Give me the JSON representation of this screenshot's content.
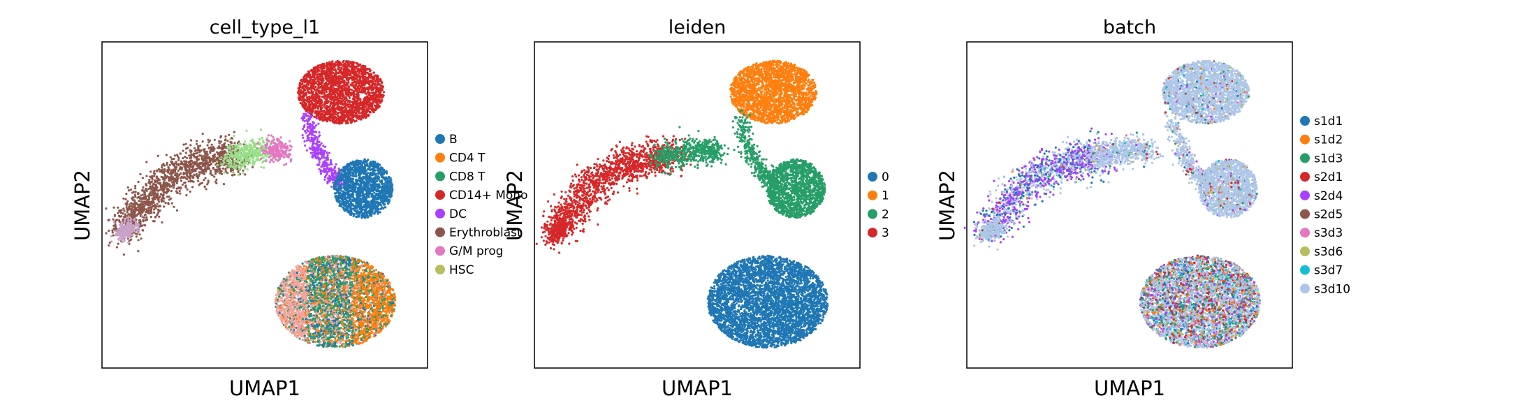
{
  "chart_data": [
    {
      "type": "scatter",
      "title": "cell_type_l1",
      "xlabel": "UMAP1",
      "ylabel": "UMAP2",
      "xticks": "none",
      "yticks": "none",
      "legend_position": "right",
      "legend": [
        {
          "label": "B",
          "color": "#1f77b4"
        },
        {
          "label": "CD4 T",
          "color": "#ff7f0e"
        },
        {
          "label": "CD8 T",
          "color": "#279e68"
        },
        {
          "label": "CD14+ Mono",
          "color": "#d62728"
        },
        {
          "label": "DC",
          "color": "#aa40fc"
        },
        {
          "label": "Erythroblast",
          "color": "#8c564b"
        },
        {
          "label": "G/M prog",
          "color": "#e377c2"
        },
        {
          "label": "HSC",
          "color": "#b5bd61"
        }
      ],
      "extra_colors": [
        "#f2a29b",
        "#c8a2c8",
        "#98df8a"
      ]
    },
    {
      "type": "scatter",
      "title": "leiden",
      "xlabel": "UMAP1",
      "ylabel": "UMAP2",
      "xticks": "none",
      "yticks": "none",
      "legend_position": "right",
      "legend": [
        {
          "label": "0",
          "color": "#1f77b4"
        },
        {
          "label": "1",
          "color": "#ff7f0e"
        },
        {
          "label": "2",
          "color": "#279e68"
        },
        {
          "label": "3",
          "color": "#d62728"
        }
      ]
    },
    {
      "type": "scatter",
      "title": "batch",
      "xlabel": "UMAP1",
      "ylabel": "UMAP2",
      "xticks": "none",
      "yticks": "none",
      "legend_position": "right",
      "legend": [
        {
          "label": "s1d1",
          "color": "#1f77b4"
        },
        {
          "label": "s1d2",
          "color": "#ff7f0e"
        },
        {
          "label": "s1d3",
          "color": "#279e68"
        },
        {
          "label": "s2d1",
          "color": "#d62728"
        },
        {
          "label": "s2d4",
          "color": "#aa40fc"
        },
        {
          "label": "s2d5",
          "color": "#8c564b"
        },
        {
          "label": "s3d3",
          "color": "#e377c2"
        },
        {
          "label": "s3d6",
          "color": "#b5bd61"
        },
        {
          "label": "s3d7",
          "color": "#17becf"
        },
        {
          "label": "s3d10",
          "color": "#aec7e8"
        }
      ]
    }
  ]
}
